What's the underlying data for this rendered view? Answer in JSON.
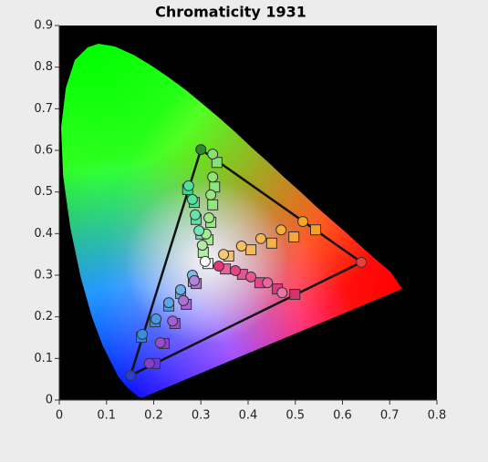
{
  "chart_data": {
    "type": "scatter",
    "title": "Chromaticity 1931",
    "xlim": [
      0,
      0.8
    ],
    "ylim": [
      0,
      0.9
    ],
    "xticks": [
      0,
      0.1,
      0.2,
      0.3,
      0.4,
      0.5,
      0.6,
      0.7,
      0.8
    ],
    "yticks": [
      0,
      0.1,
      0.2,
      0.3,
      0.4,
      0.5,
      0.6,
      0.7,
      0.8,
      0.9
    ],
    "gamut": {
      "x": [
        0.3,
        0.64,
        0.151
      ],
      "y": [
        0.602,
        0.331,
        0.059
      ],
      "color": "#111111"
    },
    "series": [
      {
        "marker": "square",
        "x": [
          0.334,
          0.329,
          0.325,
          0.321,
          0.315,
          0.305,
          0.272,
          0.286,
          0.29,
          0.3,
          0.315,
          0.543,
          0.497,
          0.45,
          0.406,
          0.359,
          0.499,
          0.462,
          0.425,
          0.388,
          0.352,
          0.203,
          0.174,
          0.203,
          0.232,
          0.257,
          0.284,
          0.222,
          0.245,
          0.269,
          0.29
        ],
        "y": [
          0.571,
          0.512,
          0.469,
          0.427,
          0.385,
          0.355,
          0.506,
          0.475,
          0.434,
          0.399,
          0.328,
          0.409,
          0.392,
          0.377,
          0.361,
          0.346,
          0.254,
          0.267,
          0.282,
          0.302,
          0.315,
          0.088,
          0.151,
          0.188,
          0.226,
          0.256,
          0.285,
          0.136,
          0.184,
          0.23,
          0.28
        ],
        "colors": [
          "#7fe37a",
          "#8ae67a",
          "#92e67f",
          "#9be888",
          "#a6ea95",
          "#b4eda6",
          "#3fdc8c",
          "#4fe09a",
          "#60e2a6",
          "#74e6b2",
          "#ffffff",
          "#f5a02a",
          "#f5a83a",
          "#f6b04c",
          "#f7b95e",
          "#f8c270",
          "#d8306e",
          "#dc3a7a",
          "#e04887",
          "#e35594",
          "#e763a0",
          "#6a3ad8",
          "#3a7fd8",
          "#3a8ee0",
          "#4e9ce4",
          "#63aae8",
          "#78b8ec",
          "#9a3ad0",
          "#a24cd4",
          "#aa5ed8",
          "#b270dc"
        ]
      },
      {
        "marker": "circle",
        "x": [
          0.3,
          0.64,
          0.151,
          0.325,
          0.325,
          0.321,
          0.317,
          0.311,
          0.303,
          0.274,
          0.282,
          0.288,
          0.296,
          0.309,
          0.516,
          0.47,
          0.427,
          0.386,
          0.348,
          0.338,
          0.373,
          0.406,
          0.441,
          0.472,
          0.176,
          0.205,
          0.232,
          0.257,
          0.282,
          0.191,
          0.214,
          0.24,
          0.263,
          0.286
        ],
        "y": [
          0.602,
          0.331,
          0.059,
          0.591,
          0.536,
          0.493,
          0.438,
          0.399,
          0.372,
          0.515,
          0.482,
          0.445,
          0.407,
          0.333,
          0.429,
          0.409,
          0.388,
          0.37,
          0.35,
          0.322,
          0.311,
          0.296,
          0.282,
          0.258,
          0.158,
          0.195,
          0.234,
          0.265,
          0.3,
          0.088,
          0.138,
          0.19,
          0.239,
          0.287
        ],
        "colors": [
          "#2c8a2c",
          "#e8403a",
          "#2a3fd0",
          "#86e36a",
          "#8ee674",
          "#96e67e",
          "#9ee888",
          "#a8ea94",
          "#b2eca2",
          "#4de39a",
          "#58e2a2",
          "#64e4aa",
          "#72e6b4",
          "#ffffff",
          "#f5a623",
          "#f6ae36",
          "#f7b84a",
          "#f8c05c",
          "#f9c86e",
          "#e8357a",
          "#e84586",
          "#e95492",
          "#ea639e",
          "#eb72aa",
          "#3a8ee0",
          "#4a9ae4",
          "#5aa6e8",
          "#6ab2ec",
          "#7abef0",
          "#8a3ad0",
          "#964cd4",
          "#a25ed8",
          "#ae70dc",
          "#ba82e0"
        ]
      }
    ]
  }
}
